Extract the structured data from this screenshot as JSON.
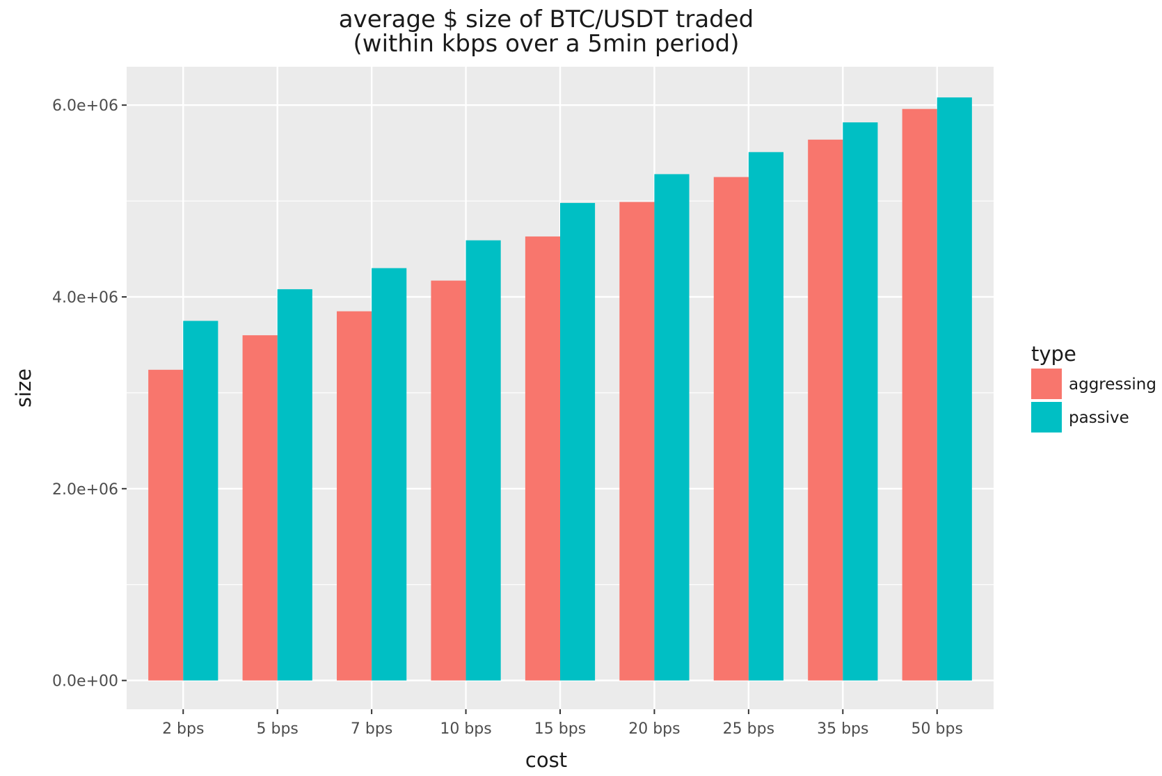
{
  "chart_data": {
    "type": "bar",
    "title": "average $ size of BTC/USDT traded",
    "subtitle": "(within kbps over a 5min period)",
    "xlabel": "cost",
    "ylabel": "size",
    "categories": [
      "2 bps",
      "5 bps",
      "7 bps",
      "10 bps",
      "15 bps",
      "20 bps",
      "25 bps",
      "35 bps",
      "50 bps"
    ],
    "series": [
      {
        "name": "aggressing",
        "color": "#F8766D",
        "values": [
          3240000,
          3600000,
          3850000,
          4170000,
          4630000,
          4990000,
          5250000,
          5640000,
          5960000
        ]
      },
      {
        "name": "passive",
        "color": "#00BFC4",
        "values": [
          3750000,
          4080000,
          4300000,
          4590000,
          4980000,
          5280000,
          5510000,
          5820000,
          6080000
        ]
      }
    ],
    "ylim": [
      -300000,
      6400000
    ],
    "yticks": [
      0,
      2000000,
      4000000,
      6000000
    ],
    "ytick_labels": [
      "0.0e+00",
      "2.0e+06",
      "4.0e+06",
      "6.0e+06"
    ],
    "grid": true,
    "legend": {
      "title": "type",
      "position": "right"
    },
    "panel_color": "#EBEBEB"
  }
}
